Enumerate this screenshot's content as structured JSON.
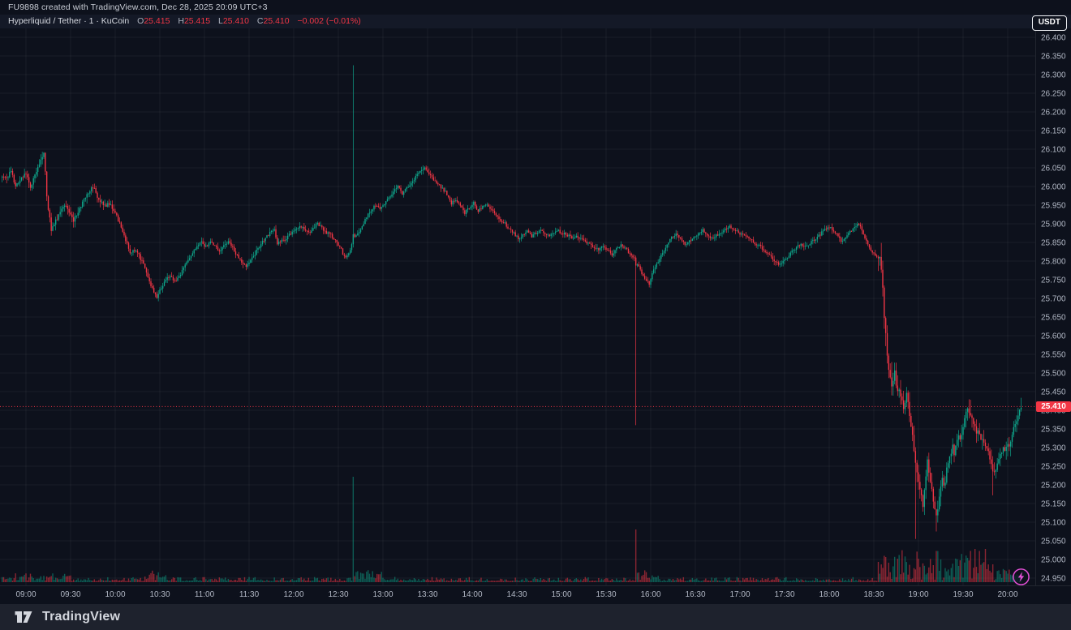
{
  "attribution": "FU9898 created with TradingView.com, Dec 28, 2025 20:09 UTC+3",
  "legend": {
    "symbol_line": "Hyperliquid / Tether · 1 · KuCoin",
    "o_label": "O",
    "o": "25.415",
    "h_label": "H",
    "h": "25.415",
    "l_label": "L",
    "l": "25.410",
    "c_label": "C",
    "c": "25.410",
    "change": "−0.002 (−0.01%)"
  },
  "currency_button": "USDT",
  "price_badge": "25.410",
  "footer": {
    "brand": "TradingView"
  },
  "colors": {
    "background": "#0d111c",
    "footer_bar": "#1e222d",
    "legend_strip": "#141927",
    "grid": "rgba(255,255,255,0.05)",
    "axis_text": "#b0b6c3",
    "up": "#0ea78c",
    "down": "#f23645",
    "badge_bg": "#f23645",
    "marker": "#e24fd6"
  },
  "chart_data": {
    "type": "candlestick",
    "title": "Hyperliquid / Tether 1-minute, KuCoin",
    "last_price": 25.41,
    "visible_high": 26.325,
    "visible_low": 25.05,
    "y_axis": {
      "min": 24.95,
      "max": 26.4,
      "step": 0.05,
      "labels": [
        "26.400",
        "26.350",
        "26.300",
        "26.250",
        "26.200",
        "26.150",
        "26.100",
        "26.050",
        "26.000",
        "25.950",
        "25.900",
        "25.850",
        "25.800",
        "25.750",
        "25.700",
        "25.650",
        "25.600",
        "25.550",
        "25.500",
        "25.450",
        "25.400",
        "25.350",
        "25.300",
        "25.250",
        "25.200",
        "25.150",
        "25.100",
        "25.050",
        "25.000",
        "24.950"
      ]
    },
    "x_axis": {
      "start_minute": -16,
      "end_minute": 669,
      "labels": [
        "09:00",
        "09:30",
        "10:00",
        "10:30",
        "11:00",
        "11:30",
        "12:00",
        "12:30",
        "13:00",
        "13:30",
        "14:00",
        "14:30",
        "15:00",
        "15:30",
        "16:00",
        "16:30",
        "17:00",
        "17:30",
        "18:00",
        "18:30",
        "19:00",
        "19:30",
        "20:00"
      ]
    },
    "path": [
      [
        -16,
        26.03
      ],
      [
        -13,
        26.02
      ],
      [
        -10,
        26.045
      ],
      [
        -7,
        26.0
      ],
      [
        -4,
        26.02
      ],
      [
        0,
        26.035
      ],
      [
        3,
        26.0
      ],
      [
        6,
        26.03
      ],
      [
        9,
        26.06
      ],
      [
        12,
        26.09
      ],
      [
        13,
        26.04
      ],
      [
        14,
        25.97
      ],
      [
        17,
        25.885
      ],
      [
        20,
        25.91
      ],
      [
        23,
        25.93
      ],
      [
        26,
        25.95
      ],
      [
        29,
        25.935
      ],
      [
        32,
        25.91
      ],
      [
        35,
        25.93
      ],
      [
        38,
        25.96
      ],
      [
        41,
        25.975
      ],
      [
        45,
        26.0
      ],
      [
        48,
        25.97
      ],
      [
        51,
        25.955
      ],
      [
        55,
        25.95
      ],
      [
        58,
        25.945
      ],
      [
        60,
        25.93
      ],
      [
        63,
        25.9
      ],
      [
        66,
        25.87
      ],
      [
        70,
        25.82
      ],
      [
        73,
        25.83
      ],
      [
        76,
        25.815
      ],
      [
        79,
        25.79
      ],
      [
        82,
        25.76
      ],
      [
        85,
        25.725
      ],
      [
        88,
        25.705
      ],
      [
        91,
        25.73
      ],
      [
        94,
        25.75
      ],
      [
        97,
        25.76
      ],
      [
        100,
        25.745
      ],
      [
        103,
        25.76
      ],
      [
        106,
        25.78
      ],
      [
        109,
        25.8
      ],
      [
        112,
        25.825
      ],
      [
        115,
        25.84
      ],
      [
        118,
        25.85
      ],
      [
        121,
        25.838
      ],
      [
        124,
        25.855
      ],
      [
        127,
        25.84
      ],
      [
        130,
        25.825
      ],
      [
        133,
        25.84
      ],
      [
        136,
        25.85
      ],
      [
        139,
        25.835
      ],
      [
        142,
        25.815
      ],
      [
        145,
        25.8
      ],
      [
        148,
        25.785
      ],
      [
        151,
        25.8
      ],
      [
        154,
        25.82
      ],
      [
        158,
        25.845
      ],
      [
        161,
        25.86
      ],
      [
        164,
        25.875
      ],
      [
        167,
        25.885
      ],
      [
        169,
        25.845
      ],
      [
        172,
        25.855
      ],
      [
        175,
        25.86
      ],
      [
        178,
        25.875
      ],
      [
        181,
        25.885
      ],
      [
        184,
        25.895
      ],
      [
        187,
        25.885
      ],
      [
        190,
        25.875
      ],
      [
        193,
        25.89
      ],
      [
        196,
        25.9
      ],
      [
        199,
        25.89
      ],
      [
        202,
        25.875
      ],
      [
        205,
        25.87
      ],
      [
        208,
        25.855
      ],
      [
        211,
        25.84
      ],
      [
        214,
        25.81
      ],
      [
        217,
        25.82
      ],
      [
        220,
        25.86
      ],
      [
        223,
        25.875
      ],
      [
        226,
        25.89
      ],
      [
        229,
        25.92
      ],
      [
        232,
        25.935
      ],
      [
        235,
        25.95
      ],
      [
        238,
        25.94
      ],
      [
        241,
        25.955
      ],
      [
        244,
        25.97
      ],
      [
        247,
        25.985
      ],
      [
        250,
        26.0
      ],
      [
        253,
        25.98
      ],
      [
        256,
        25.995
      ],
      [
        259,
        26.01
      ],
      [
        262,
        26.025
      ],
      [
        265,
        26.04
      ],
      [
        268,
        26.05
      ],
      [
        271,
        26.035
      ],
      [
        274,
        26.02
      ],
      [
        277,
        26.005
      ],
      [
        280,
        25.995
      ],
      [
        283,
        25.98
      ],
      [
        286,
        25.955
      ],
      [
        289,
        25.965
      ],
      [
        292,
        25.945
      ],
      [
        295,
        25.93
      ],
      [
        298,
        25.945
      ],
      [
        301,
        25.955
      ],
      [
        304,
        25.935
      ],
      [
        307,
        25.945
      ],
      [
        310,
        25.955
      ],
      [
        313,
        25.935
      ],
      [
        316,
        25.925
      ],
      [
        319,
        25.91
      ],
      [
        322,
        25.9
      ],
      [
        325,
        25.885
      ],
      [
        328,
        25.875
      ],
      [
        331,
        25.86
      ],
      [
        334,
        25.87
      ],
      [
        337,
        25.88
      ],
      [
        340,
        25.865
      ],
      [
        343,
        25.875
      ],
      [
        346,
        25.885
      ],
      [
        349,
        25.875
      ],
      [
        352,
        25.87
      ],
      [
        355,
        25.875
      ],
      [
        358,
        25.88
      ],
      [
        361,
        25.875
      ],
      [
        364,
        25.87
      ],
      [
        367,
        25.862
      ],
      [
        370,
        25.868
      ],
      [
        373,
        25.86
      ],
      [
        376,
        25.852
      ],
      [
        379,
        25.845
      ],
      [
        382,
        25.838
      ],
      [
        385,
        25.832
      ],
      [
        388,
        25.84
      ],
      [
        391,
        25.828
      ],
      [
        394,
        25.818
      ],
      [
        397,
        25.832
      ],
      [
        400,
        25.845
      ],
      [
        403,
        25.835
      ],
      [
        406,
        25.82
      ],
      [
        409,
        25.81
      ],
      [
        411,
        25.79
      ],
      [
        413,
        25.775
      ],
      [
        415,
        25.762
      ],
      [
        417,
        25.748
      ],
      [
        419,
        25.74
      ],
      [
        421,
        25.765
      ],
      [
        423,
        25.785
      ],
      [
        425,
        25.8
      ],
      [
        428,
        25.822
      ],
      [
        431,
        25.845
      ],
      [
        434,
        25.862
      ],
      [
        437,
        25.875
      ],
      [
        440,
        25.858
      ],
      [
        443,
        25.845
      ],
      [
        446,
        25.852
      ],
      [
        449,
        25.862
      ],
      [
        452,
        25.875
      ],
      [
        455,
        25.885
      ],
      [
        458,
        25.872
      ],
      [
        461,
        25.86
      ],
      [
        464,
        25.868
      ],
      [
        467,
        25.876
      ],
      [
        470,
        25.885
      ],
      [
        473,
        25.895
      ],
      [
        476,
        25.885
      ],
      [
        479,
        25.875
      ],
      [
        482,
        25.87
      ],
      [
        485,
        25.862
      ],
      [
        488,
        25.855
      ],
      [
        491,
        25.845
      ],
      [
        494,
        25.838
      ],
      [
        497,
        25.825
      ],
      [
        500,
        25.815
      ],
      [
        503,
        25.8
      ],
      [
        506,
        25.792
      ],
      [
        509,
        25.8
      ],
      [
        512,
        25.812
      ],
      [
        515,
        25.825
      ],
      [
        518,
        25.838
      ],
      [
        521,
        25.845
      ],
      [
        524,
        25.838
      ],
      [
        527,
        25.848
      ],
      [
        530,
        25.858
      ],
      [
        533,
        25.868
      ],
      [
        536,
        25.88
      ],
      [
        539,
        25.892
      ],
      [
        542,
        25.885
      ],
      [
        545,
        25.872
      ],
      [
        548,
        25.855
      ],
      [
        551,
        25.862
      ],
      [
        554,
        25.878
      ],
      [
        557,
        25.892
      ],
      [
        560,
        25.9
      ],
      [
        562,
        25.88
      ],
      [
        564,
        25.862
      ],
      [
        566,
        25.845
      ],
      [
        568,
        25.832
      ],
      [
        570,
        25.82
      ],
      [
        572,
        25.81
      ],
      [
        574,
        25.8
      ],
      [
        575,
        25.775
      ],
      [
        576,
        25.72
      ],
      [
        577,
        25.655
      ],
      [
        578,
        25.6
      ],
      [
        579,
        25.56
      ],
      [
        580,
        25.52
      ],
      [
        581,
        25.49
      ],
      [
        582,
        25.465
      ],
      [
        583,
        25.478
      ],
      [
        584,
        25.495
      ],
      [
        585,
        25.478
      ],
      [
        586,
        25.462
      ],
      [
        587,
        25.448
      ],
      [
        588,
        25.435
      ],
      [
        589,
        25.42
      ],
      [
        590,
        25.405
      ],
      [
        591,
        25.425
      ],
      [
        592,
        25.44
      ],
      [
        593,
        25.42
      ],
      [
        594,
        25.39
      ],
      [
        595,
        25.36
      ],
      [
        596,
        25.33
      ],
      [
        597,
        25.295
      ],
      [
        598,
        25.26
      ],
      [
        599,
        25.235
      ],
      [
        600,
        25.21
      ],
      [
        601,
        25.19
      ],
      [
        602,
        25.165
      ],
      [
        603,
        25.145
      ],
      [
        604,
        25.18
      ],
      [
        605,
        25.225
      ],
      [
        606,
        25.26
      ],
      [
        607,
        25.235
      ],
      [
        608,
        25.21
      ],
      [
        609,
        25.18
      ],
      [
        610,
        25.15
      ],
      [
        611,
        25.125
      ],
      [
        612,
        25.11
      ],
      [
        613,
        25.135
      ],
      [
        614,
        25.165
      ],
      [
        615,
        25.19
      ],
      [
        616,
        25.21
      ],
      [
        617,
        25.195
      ],
      [
        618,
        25.215
      ],
      [
        619,
        25.24
      ],
      [
        620,
        25.26
      ],
      [
        621,
        25.275
      ],
      [
        622,
        25.29
      ],
      [
        623,
        25.3
      ],
      [
        624,
        25.285
      ],
      [
        625,
        25.3
      ],
      [
        626,
        25.318
      ],
      [
        627,
        25.33
      ],
      [
        628,
        25.318
      ],
      [
        629,
        25.332
      ],
      [
        630,
        25.35
      ],
      [
        631,
        25.372
      ],
      [
        632,
        25.39
      ],
      [
        633,
        25.405
      ],
      [
        634,
        25.395
      ],
      [
        635,
        25.382
      ],
      [
        636,
        25.372
      ],
      [
        637,
        25.362
      ],
      [
        638,
        25.352
      ],
      [
        639,
        25.345
      ],
      [
        640,
        25.338
      ],
      [
        642,
        25.328
      ],
      [
        644,
        25.318
      ],
      [
        646,
        25.3
      ],
      [
        648,
        25.272
      ],
      [
        650,
        25.23
      ],
      [
        652,
        25.248
      ],
      [
        654,
        25.268
      ],
      [
        656,
        25.285
      ],
      [
        658,
        25.3
      ],
      [
        660,
        25.312
      ],
      [
        661,
        25.298
      ],
      [
        662,
        25.318
      ],
      [
        663,
        25.335
      ],
      [
        664,
        25.355
      ],
      [
        665,
        25.372
      ],
      [
        666,
        25.362
      ],
      [
        667,
        25.385
      ],
      [
        668,
        25.402
      ],
      [
        669,
        25.41
      ]
    ],
    "wick_events": [
      {
        "m": 220,
        "high": 26.325,
        "body_close": 25.872
      },
      {
        "m": 410,
        "low": 25.36,
        "body_close": 25.788
      },
      {
        "m": 598,
        "low": 25.055
      },
      {
        "m": 612,
        "low": 25.075
      },
      {
        "m": 635,
        "high": 25.428
      },
      {
        "m": 650,
        "low": 25.172
      }
    ],
    "volatility": [
      {
        "from": -16,
        "to": 60,
        "amp": 0.016
      },
      {
        "from": 61,
        "to": 219,
        "amp": 0.012
      },
      {
        "from": 220,
        "to": 572,
        "amp": 0.011
      },
      {
        "from": 573,
        "to": 586,
        "amp": 0.042
      },
      {
        "from": 587,
        "to": 669,
        "amp": 0.027
      }
    ],
    "volume_profile": [
      {
        "from": -16,
        "to": 30,
        "boost": 6
      },
      {
        "from": 80,
        "to": 95,
        "boost": 9
      },
      {
        "from": 220,
        "to": 220,
        "set": 130
      },
      {
        "from": 221,
        "to": 240,
        "boost": 12
      },
      {
        "from": 410,
        "to": 410,
        "set": 65
      },
      {
        "from": 411,
        "to": 425,
        "boost": 14
      },
      {
        "from": 573,
        "to": 645,
        "boost": 38
      },
      {
        "from": 646,
        "to": 669,
        "boost": 16
      },
      {
        "from": 615,
        "to": 615,
        "set": 28
      },
      {
        "from": 650,
        "to": 650,
        "set": 22
      }
    ]
  }
}
